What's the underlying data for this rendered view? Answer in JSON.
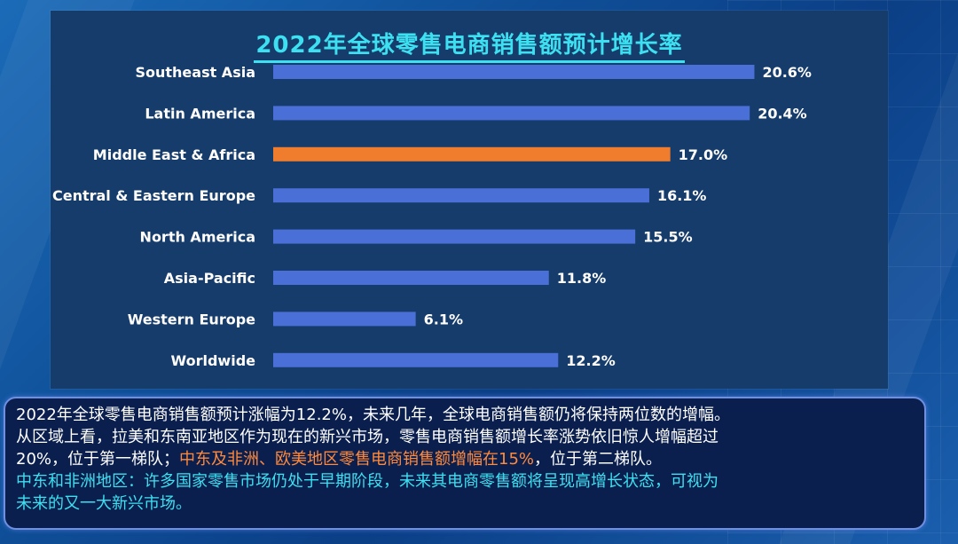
{
  "chart_data": {
    "type": "bar",
    "orientation": "horizontal",
    "title": "2022年全球零售电商销售额预计增长率",
    "categories": [
      "Southeast Asia",
      "Latin America",
      "Middle East & Africa",
      "Central & Eastern Europe",
      "North America",
      "Asia-Pacific",
      "Western Europe",
      "Worldwide"
    ],
    "values": [
      20.6,
      20.4,
      17.0,
      16.1,
      15.5,
      11.8,
      6.1,
      12.2
    ],
    "value_labels": [
      "20.6%",
      "20.4%",
      "17.0%",
      "16.1%",
      "15.5%",
      "11.8%",
      "6.1%",
      "12.2%"
    ],
    "highlight_index": 2,
    "colors": {
      "bar": "#4a6fd6",
      "highlight": "#ef7d2d",
      "title": "#3de0f0"
    },
    "xlim": [
      0,
      21
    ],
    "grid": false,
    "legend": "none"
  },
  "text": {
    "line1": "2022年全球零售电商销售额预计涨幅为12.2%，未来几年，全球电商销售额仍将保持两位数的增幅。",
    "line2": "从区域上看，拉美和东南亚地区作为现在的新兴市场，零售电商销售额增长率涨势依旧惊人增幅超过",
    "line3_a": "20%，位于第一梯队；",
    "line3_b": "中东及非洲、欧美地区零售电商销售额增幅在15%",
    "line3_c": "，位于第二梯队。",
    "line4": "中东和非洲地区：许多国家零售市场仍处于早期阶段，未来其电商零售额将呈现高增长状态，可视为",
    "line5": "未来的又一大新兴市场。"
  }
}
